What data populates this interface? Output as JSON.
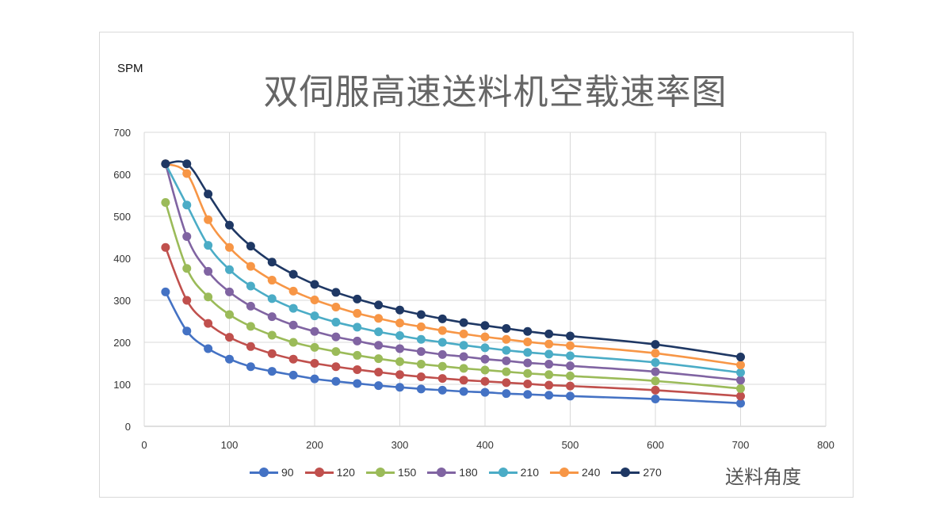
{
  "chart_data": {
    "type": "line",
    "title": "双伺服高速送料机空载速率图",
    "ylabel": "SPM",
    "xlabel": "送料角度",
    "xlim": [
      0,
      800
    ],
    "ylim": [
      0,
      700
    ],
    "xticks": [
      0,
      100,
      200,
      300,
      400,
      500,
      600,
      700,
      800
    ],
    "yticks": [
      0,
      100,
      200,
      300,
      400,
      500,
      600,
      700
    ],
    "grid": true,
    "legend_position": "bottom",
    "x": [
      25,
      50,
      75,
      100,
      125,
      150,
      175,
      200,
      225,
      250,
      275,
      300,
      325,
      350,
      375,
      400,
      425,
      450,
      475,
      500,
      600,
      700
    ],
    "series": [
      {
        "name": "90",
        "color": "#4472c4",
        "values": [
          320,
          227,
          185,
          160,
          142,
          131,
          122,
          113,
          107,
          102,
          97,
          93,
          89,
          86,
          83,
          81,
          78,
          76,
          74,
          72,
          65,
          55
        ]
      },
      {
        "name": "120",
        "color": "#c0504d",
        "values": [
          426,
          300,
          245,
          212,
          190,
          173,
          160,
          150,
          142,
          135,
          129,
          123,
          118,
          114,
          110,
          107,
          104,
          101,
          98,
          96,
          86,
          72
        ]
      },
      {
        "name": "150",
        "color": "#9bbb59",
        "values": [
          533,
          376,
          308,
          266,
          238,
          217,
          200,
          188,
          178,
          169,
          161,
          154,
          148,
          143,
          138,
          134,
          130,
          126,
          123,
          120,
          108,
          90
        ]
      },
      {
        "name": "180",
        "color": "#8064a2",
        "values": [
          625,
          452,
          369,
          320,
          286,
          261,
          241,
          226,
          213,
          203,
          193,
          185,
          178,
          171,
          166,
          160,
          156,
          151,
          148,
          144,
          130,
          110
        ]
      },
      {
        "name": "210",
        "color": "#4bacc6",
        "values": [
          625,
          527,
          431,
          373,
          334,
          304,
          281,
          263,
          248,
          236,
          225,
          216,
          207,
          200,
          193,
          187,
          181,
          176,
          172,
          168,
          152,
          128
        ]
      },
      {
        "name": "240",
        "color": "#f79646",
        "values": [
          625,
          602,
          492,
          426,
          381,
          348,
          322,
          301,
          284,
          269,
          257,
          246,
          237,
          228,
          220,
          213,
          207,
          201,
          196,
          192,
          174,
          146
        ]
      },
      {
        "name": "270",
        "color": "#1f3864",
        "values": [
          625,
          625,
          553,
          479,
          429,
          391,
          362,
          338,
          319,
          303,
          289,
          277,
          266,
          256,
          247,
          240,
          233,
          226,
          220,
          215,
          195,
          165
        ]
      }
    ]
  }
}
